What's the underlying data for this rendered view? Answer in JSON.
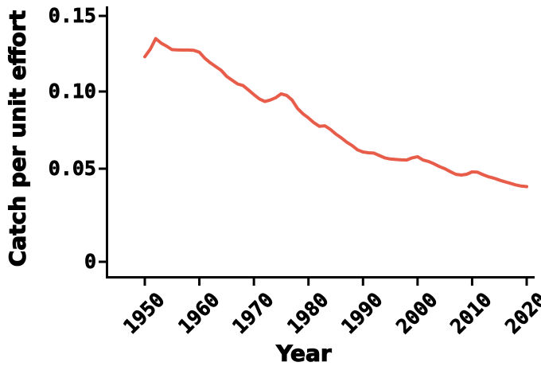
{
  "style": {
    "background": "#ffffff",
    "axis_color": "#000000",
    "line_color": "#e85c4a"
  },
  "chart_data": {
    "type": "line",
    "title": "",
    "xlabel": "Year",
    "ylabel": "Catch per unit effort",
    "legend": "none",
    "grid": false,
    "xlim": [
      1950,
      2021
    ],
    "ylim": [
      0,
      0.155
    ],
    "x_ticks": [
      1950,
      1960,
      1970,
      1980,
      1990,
      2000,
      2010,
      2020
    ],
    "x_tick_labels": [
      "1950",
      "1960",
      "1970",
      "1980",
      "1990",
      "2000",
      "2010",
      "2020"
    ],
    "y_ticks": [
      0,
      0.05,
      0.1,
      0.15
    ],
    "y_tick_labels": [
      "0",
      "0.05",
      "0.10",
      "0.15"
    ],
    "series": [
      {
        "name": "catch-per-unit-effort",
        "color": "#e85c4a",
        "x": [
          1950,
          1951,
          1952,
          1953,
          1954,
          1955,
          1956,
          1957,
          1958,
          1959,
          1960,
          1961,
          1962,
          1963,
          1964,
          1965,
          1966,
          1967,
          1968,
          1969,
          1970,
          1971,
          1972,
          1973,
          1974,
          1975,
          1976,
          1977,
          1978,
          1979,
          1980,
          1981,
          1982,
          1983,
          1984,
          1985,
          1986,
          1987,
          1988,
          1989,
          1990,
          1991,
          1992,
          1993,
          1994,
          1995,
          1996,
          1997,
          1998,
          1999,
          2000,
          2001,
          2002,
          2003,
          2004,
          2005,
          2006,
          2007,
          2008,
          2009,
          2010,
          2011,
          2012,
          2013,
          2014,
          2015,
          2016,
          2017,
          2018,
          2019,
          2020
        ],
        "y": [
          0.123,
          0.128,
          0.135,
          0.132,
          0.13,
          0.1277,
          0.1275,
          0.1274,
          0.1274,
          0.1272,
          0.126,
          0.122,
          0.119,
          0.1165,
          0.114,
          0.11,
          0.1075,
          0.105,
          0.104,
          0.101,
          0.098,
          0.0952,
          0.0935,
          0.0945,
          0.096,
          0.0985,
          0.0975,
          0.0945,
          0.089,
          0.0855,
          0.0829,
          0.0798,
          0.0775,
          0.0778,
          0.0755,
          0.0725,
          0.07,
          0.0672,
          0.065,
          0.0622,
          0.0608,
          0.0603,
          0.0601,
          0.0585,
          0.057,
          0.0563,
          0.056,
          0.0557,
          0.0556,
          0.057,
          0.0578,
          0.0556,
          0.0547,
          0.0532,
          0.0514,
          0.05,
          0.0484,
          0.047,
          0.0466,
          0.047,
          0.0483,
          0.0481,
          0.0468,
          0.0457,
          0.0449,
          0.0439,
          0.043,
          0.0422,
          0.0413,
          0.0407,
          0.0404
        ]
      }
    ]
  }
}
